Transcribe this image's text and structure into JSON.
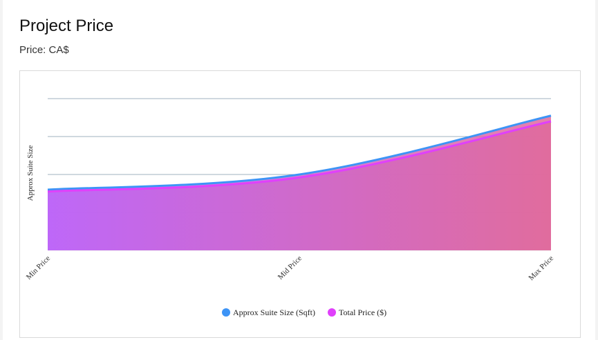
{
  "header": {
    "title": "Project Price",
    "subtitle": "Price: CA$"
  },
  "chart_data": {
    "type": "area",
    "ylabel": "Approx Suite Size",
    "categories": [
      "Min Price",
      "Mid Price",
      "Max Price"
    ],
    "ylim": [
      0,
      4
    ],
    "grid": true,
    "legend_position": "bottom",
    "series": [
      {
        "name": "Approx Suite Size (Sqft)",
        "values": [
          1.6,
          2.0,
          3.55
        ],
        "color": "#3d94f6"
      },
      {
        "name": "Total Price ($)",
        "values": [
          1.55,
          1.92,
          3.4
        ],
        "color": "#e040fb"
      }
    ],
    "fill_gradient": [
      "#bd65f8",
      "#e06a9c"
    ]
  }
}
